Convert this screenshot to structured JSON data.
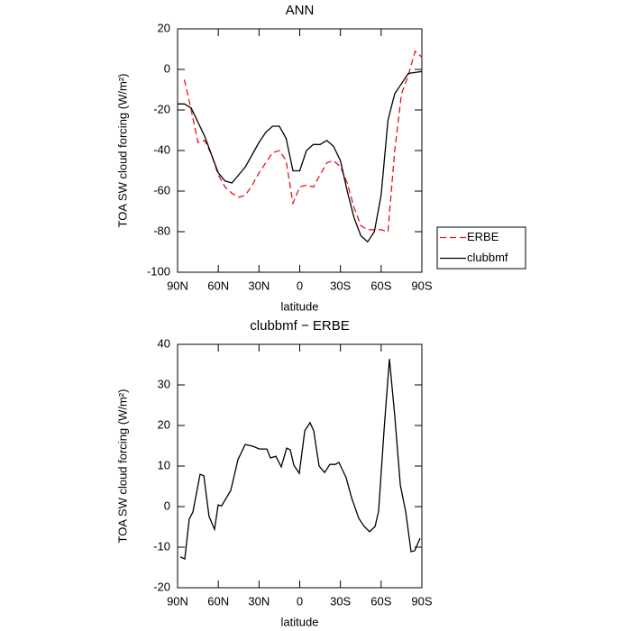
{
  "chart_data": [
    {
      "type": "line",
      "title": "ANN",
      "xlabel": "latitude",
      "ylabel": "TOA SW cloud forcing (W/m²)",
      "x": [
        90,
        85,
        80,
        75,
        70,
        65,
        60,
        55,
        50,
        45,
        40,
        35,
        30,
        25,
        20,
        15,
        10,
        5,
        0,
        -5,
        -10,
        -15,
        -20,
        -25,
        -30,
        -35,
        -40,
        -45,
        -50,
        -55,
        -60,
        -65,
        -70,
        -75,
        -80,
        -85,
        -90
      ],
      "series": [
        {
          "name": "ERBE",
          "color": "#e8141c",
          "dash": true,
          "values": [
            null,
            -5,
            -20,
            -36,
            -35,
            -42,
            -52,
            -58,
            -61,
            -63,
            -62,
            -57,
            -51,
            -46,
            -41,
            -40,
            -45,
            -66,
            -58,
            -57,
            -58,
            -52,
            -46,
            -45,
            -48,
            -56,
            -68,
            -77,
            -79,
            -79,
            -79,
            -80,
            -40,
            -12,
            -3,
            9,
            6
          ]
        },
        {
          "name": "clubbmf",
          "color": "#000000",
          "dash": false,
          "values": [
            -17,
            -17,
            -19,
            -26,
            -33,
            -42,
            -51,
            -55,
            -56,
            -52,
            -48,
            -42,
            -36,
            -31,
            -28,
            -28,
            -34,
            -50,
            -50,
            -40,
            -37,
            -37,
            -35,
            -38,
            -45,
            -60,
            -73,
            -82,
            -85,
            -80,
            -62,
            -25,
            -12,
            -7,
            -2,
            -1.5,
            -1
          ]
        }
      ],
      "xlim": [
        90,
        -90
      ],
      "xticks": [
        {
          "value": 90,
          "label": "90N"
        },
        {
          "value": 60,
          "label": "60N"
        },
        {
          "value": 30,
          "label": "30N"
        },
        0,
        {
          "value": -30,
          "label": "30S"
        },
        {
          "value": -60,
          "label": "60S"
        },
        {
          "value": -90,
          "label": "90S"
        }
      ],
      "ylim": [
        -100,
        20
      ],
      "yticks": [
        -100,
        -80,
        -60,
        -40,
        -20,
        0,
        20
      ],
      "legend": "right"
    },
    {
      "type": "line",
      "title": "clubbmf − ERBE",
      "xlabel": "latitude",
      "ylabel": "TOA SW cloud forcing (W/m²)",
      "x": [
        88,
        84.7,
        81.4,
        78.7,
        73.4,
        70.7,
        66.8,
        62.8,
        60.1,
        57.5,
        50.8,
        45.5,
        40.2,
        34.9,
        29.6,
        24.2,
        21.6,
        17.6,
        13.6,
        9.6,
        7,
        4.3,
        0.3,
        -3.7,
        -7.6,
        -10.3,
        -14.3,
        -18.3,
        -22.2,
        -26.2,
        -28.9,
        -34.2,
        -38.2,
        -43.5,
        -47.5,
        -51.5,
        -55.5,
        -58.1,
        -62.1,
        -66.1,
        -70.1,
        -74.1,
        -78.1,
        -82,
        -84.7,
        -88.7
      ],
      "series": [
        {
          "color": "#000000",
          "dash": false,
          "values": [
            -12.4,
            -12.9,
            -3.1,
            -1.3,
            8,
            7.6,
            -2.4,
            -5.6,
            0.4,
            0.2,
            4,
            11.6,
            15.3,
            14.9,
            14.2,
            14.2,
            12,
            12.4,
            9.8,
            14.4,
            14,
            10.2,
            8.2,
            18.7,
            20.7,
            18.7,
            10,
            8.4,
            10.4,
            10.4,
            10.9,
            7.1,
            2.2,
            -2.9,
            -4.9,
            -6.2,
            -4.9,
            -1.1,
            18.7,
            36.4,
            22.2,
            5.3,
            -1.3,
            -11.1,
            -10.9,
            -7.8
          ]
        }
      ],
      "xlim": [
        90,
        -90
      ],
      "xticks": [
        {
          "value": 90,
          "label": "90N"
        },
        {
          "value": 60,
          "label": "60N"
        },
        {
          "value": 30,
          "label": "30N"
        },
        0,
        {
          "value": -30,
          "label": "30S"
        },
        {
          "value": -60,
          "label": "60S"
        },
        {
          "value": -90,
          "label": "90S"
        }
      ],
      "ylim": [
        -20,
        40
      ],
      "yticks": [
        -20,
        -10,
        0,
        10,
        20,
        30,
        40
      ]
    }
  ]
}
